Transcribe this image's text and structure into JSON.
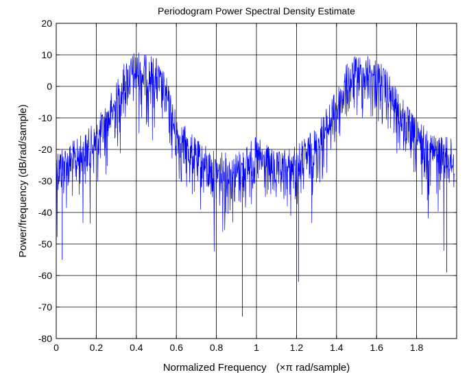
{
  "chart_data": {
    "type": "line",
    "title": "Periodogram Power Spectral Density Estimate",
    "xlabel_main": "Normalized Frequency",
    "xlabel_unit": "(×π rad/sample)",
    "ylabel": "Power/frequency (dB/rad/sample)",
    "xlim": [
      0,
      2
    ],
    "ylim": [
      -80,
      20
    ],
    "xticks": [
      0,
      0.2,
      0.4,
      0.6,
      0.8,
      1,
      1.2,
      1.4,
      1.6,
      1.8
    ],
    "xtick_labels": [
      "0",
      "0.2",
      "0.4",
      "0.6",
      "0.8",
      "1",
      "1.2",
      "1.4",
      "1.6",
      "1.8"
    ],
    "yticks": [
      20,
      10,
      0,
      -10,
      -20,
      -30,
      -40,
      -50,
      -60,
      -70,
      -80
    ],
    "ytick_labels": [
      "20",
      "10",
      "0",
      "-10",
      "-20",
      "-30",
      "-40",
      "-50",
      "-60",
      "-70",
      "-80"
    ],
    "grid": true,
    "series_color": "#0000ff",
    "series": [
      {
        "envelope": {
          "x": [
            0,
            0.1,
            0.2,
            0.3,
            0.35,
            0.4,
            0.45,
            0.5,
            0.55,
            0.6,
            0.7,
            0.8,
            0.9,
            1.0,
            1.1,
            1.2,
            1.3,
            1.4,
            1.45,
            1.5,
            1.55,
            1.6,
            1.65,
            1.7,
            1.8,
            1.9,
            1.99
          ],
          "y": [
            -28,
            -26,
            -20,
            -8,
            0,
            2,
            1,
            0,
            -6,
            -18,
            -26,
            -30,
            -30,
            -25,
            -30,
            -28,
            -22,
            -10,
            -2,
            1,
            1,
            0,
            -4,
            -10,
            -20,
            -24,
            -26
          ]
        },
        "min_dips": [
          {
            "x": 0.03,
            "y": -55
          },
          {
            "x": 0.93,
            "y": -73
          },
          {
            "x": 1.21,
            "y": -62
          },
          {
            "x": 1.95,
            "y": -59
          }
        ]
      }
    ]
  }
}
